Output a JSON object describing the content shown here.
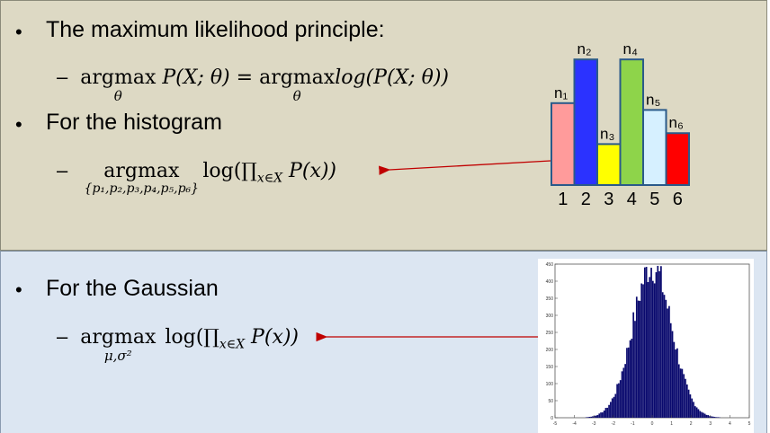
{
  "top": {
    "bullet1": "The maximum likelihood principle:",
    "eq1": {
      "dash": "–",
      "op1": "argmax",
      "op1_sub": "θ",
      "lhs": "P(X; θ) =",
      "op2": "argmax",
      "op2_sub": "θ",
      "rhs": "log(P(X; θ))"
    },
    "bullet2": "For the histogram",
    "eq2": {
      "dash": "–",
      "op": "argmax",
      "op_sub": "{p₁,p₂,p₃,p₄,p₅,p₆}",
      "expr_a": "log(∏",
      "expr_sub": "x∈X",
      "expr_b": " P(x))"
    },
    "histogram": {
      "bins": [
        "1",
        "2",
        "3",
        "4",
        "5",
        "6"
      ],
      "labels": [
        "n₁",
        "n₂",
        "n₃",
        "n₄",
        "n₅",
        "n₆"
      ],
      "colors": [
        "#ff9b9b",
        "#2b32ff",
        "#ffff00",
        "#8ed44a",
        "#d6f0ff",
        "#ff0000"
      ]
    }
  },
  "bottom": {
    "bullet": "For the Gaussian",
    "eq": {
      "dash": "–",
      "op": "argmax",
      "op_sub": "μ,σ²",
      "expr_a": "log(∏",
      "expr_sub": "x∈X",
      "expr_b": " P(x))"
    },
    "gaussian_plot": {
      "y_ticks": [
        "450",
        "400",
        "350",
        "300",
        "250",
        "200",
        "150",
        "100",
        "50",
        "0"
      ],
      "x_ticks": [
        "-5",
        "-4",
        "-3",
        "-2",
        "-1",
        "0",
        "1",
        "2",
        "3",
        "4",
        "5"
      ],
      "bar_color": "#0a0a6e"
    }
  },
  "chart_data": [
    {
      "type": "bar",
      "categories": [
        "1",
        "2",
        "3",
        "4",
        "5",
        "6"
      ],
      "series": [
        {
          "values": [
            6,
            9.2,
            3,
            9.2,
            5.5,
            3.8
          ]
        }
      ],
      "annotations": [
        "n₁",
        "n₂",
        "n₃",
        "n₄",
        "n₅",
        "n₆"
      ]
    },
    {
      "type": "bar",
      "x_range": [
        -5,
        5
      ],
      "ylim": [
        0,
        450
      ],
      "peak": 445,
      "distribution": "normal",
      "mean": 0,
      "std": 1
    }
  ]
}
